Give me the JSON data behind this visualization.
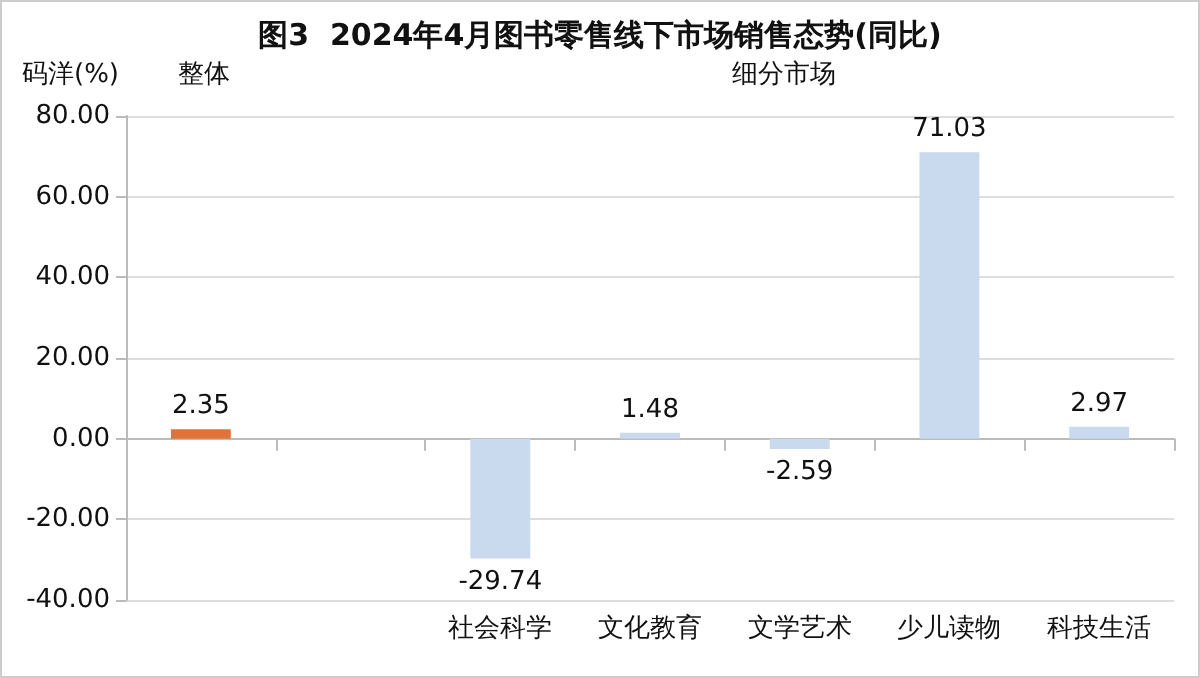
{
  "chart_data": {
    "type": "bar",
    "title": "图3  2024年4月图书零售线下市场销售态势(同比)",
    "ylabel": "码洋(%)",
    "annotations": [
      "整体",
      "细分市场"
    ],
    "categories": [
      null,
      null,
      "社会科学",
      "文化教育",
      "文学艺术",
      "少儿读物",
      "科技生活"
    ],
    "values": [
      2.35,
      null,
      -29.74,
      1.48,
      -2.59,
      71.03,
      2.97
    ],
    "colors": [
      "#e07438",
      "#c9d9ee",
      "#c9d9ee",
      "#c9d9ee",
      "#c9d9ee",
      "#c9d9ee",
      "#c9d9ee"
    ],
    "ylim": [
      -40,
      80
    ],
    "yticks": [
      {
        "value": -40,
        "label": "-40.00"
      },
      {
        "value": -20,
        "label": "-20.00"
      },
      {
        "value": 0,
        "label": "0.00"
      },
      {
        "value": 20,
        "label": "20.00"
      },
      {
        "value": 40,
        "label": "40.00"
      },
      {
        "value": 60,
        "label": "60.00"
      },
      {
        "value": 80,
        "label": "80.00"
      }
    ],
    "data_labels": true,
    "grid": "y"
  }
}
